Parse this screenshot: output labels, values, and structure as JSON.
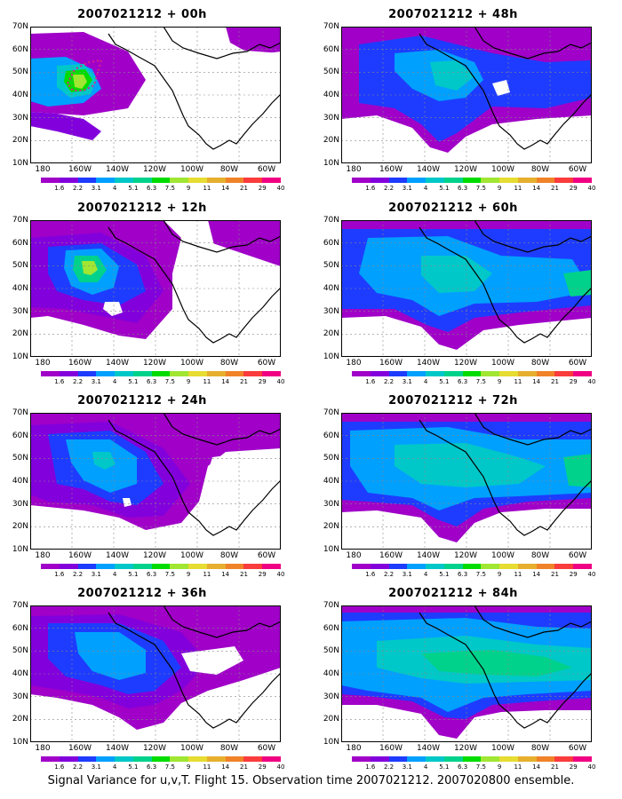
{
  "footer": "Signal Variance for u,v,T. Flight 15. Observation time 2007021212. 2007020800 ensemble.",
  "y_ticks": [
    "70N",
    "60N",
    "50N",
    "40N",
    "30N",
    "20N",
    "10N"
  ],
  "x_ticks": [
    "180",
    "160W",
    "140W",
    "120W",
    "100W",
    "80W",
    "60W"
  ],
  "colorbar": {
    "colors": [
      "#a000c8",
      "#8200dc",
      "#1e3cff",
      "#00a0ff",
      "#00c8c8",
      "#00d28c",
      "#00dc00",
      "#a0e632",
      "#e6dc32",
      "#e6af2d",
      "#f08228",
      "#fa3c3c",
      "#f00082"
    ],
    "labels": [
      "1.6",
      "2.2",
      "3.1",
      "4",
      "5.1",
      "6.3",
      "7.5",
      "9",
      "11",
      "14",
      "21",
      "29",
      "40"
    ]
  },
  "panels": [
    {
      "title": "2007021212 + 00h"
    },
    {
      "title": "2007021212 + 48h"
    },
    {
      "title": "2007021212 + 12h"
    },
    {
      "title": "2007021212 + 60h"
    },
    {
      "title": "2007021212 + 24h"
    },
    {
      "title": "2007021212 + 72h"
    },
    {
      "title": "2007021212 + 36h"
    },
    {
      "title": "2007021212 + 84h"
    }
  ]
}
